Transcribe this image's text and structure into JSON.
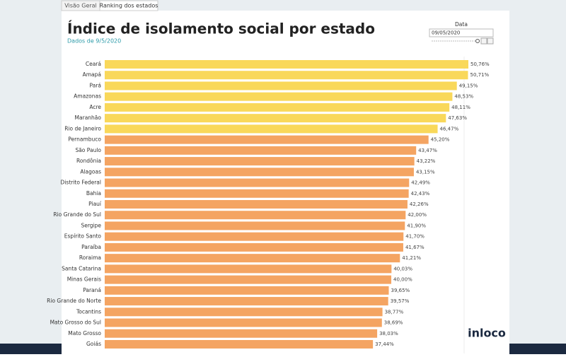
{
  "tabs": [
    "Visão Geral",
    "Ranking dos estados"
  ],
  "filter": {
    "label": "Data",
    "value": "09/05/2020"
  },
  "logo": "inloco",
  "chart_data": {
    "type": "bar",
    "orientation": "horizontal",
    "title": "Índice de isolamento social por estado",
    "subtitle": "Dados de 9/5/2020",
    "categories": [
      "Ceará",
      "Amapá",
      "Pará",
      "Amazonas",
      "Acre",
      "Maranhão",
      "Rio de Janeiro",
      "Pernambuco",
      "São Paulo",
      "Rondônia",
      "Alagoas",
      "Distrito Federal",
      "Bahia",
      "Piauí",
      "Rio Grande do Sul",
      "Sergipe",
      "Espírito Santo",
      "Paraíba",
      "Roraima",
      "Santa Catarina",
      "Minas Gerais",
      "Paraná",
      "Rio Grande do Norte",
      "Tocantins",
      "Mato Grosso do Sul",
      "Mato Grosso",
      "Goiás"
    ],
    "values": [
      50.76,
      50.71,
      49.15,
      48.53,
      48.11,
      47.63,
      46.47,
      45.2,
      43.47,
      43.22,
      43.15,
      42.49,
      42.43,
      42.26,
      42.0,
      41.9,
      41.7,
      41.67,
      41.21,
      40.03,
      40.0,
      39.65,
      39.57,
      38.77,
      38.69,
      38.03,
      37.44
    ],
    "value_labels": [
      "50,76%",
      "50,71%",
      "49,15%",
      "48,53%",
      "48,11%",
      "47,63%",
      "46,47%",
      "45,20%",
      "43,47%",
      "43,22%",
      "43,15%",
      "42,49%",
      "42,43%",
      "42,26%",
      "42,00%",
      "41,90%",
      "41,70%",
      "41,67%",
      "41,21%",
      "40,03%",
      "40,00%",
      "39,65%",
      "39,57%",
      "38,77%",
      "38,69%",
      "38,03%",
      "37,44%"
    ],
    "colors": [
      "#f9d85a",
      "#f9d85a",
      "#f9d85a",
      "#f9d85a",
      "#f9d85a",
      "#f9d85a",
      "#f9d85a",
      "#f4a462",
      "#f4a462",
      "#f4a462",
      "#f4a462",
      "#f4a462",
      "#f4a462",
      "#f4a462",
      "#f4a462",
      "#f4a462",
      "#f4a462",
      "#f4a462",
      "#f4a462",
      "#f4a462",
      "#f4a462",
      "#f4a462",
      "#f4a462",
      "#f4a462",
      "#f4a462",
      "#f4a462",
      "#f4a462"
    ],
    "xlim": [
      0,
      55.5
    ]
  }
}
